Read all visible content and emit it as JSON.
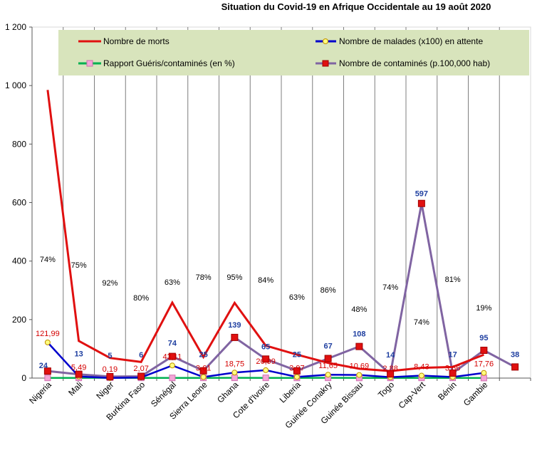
{
  "chart_data": {
    "type": "line",
    "title": "Situation du Covid-19 en Afrique Occidentale au 19 août 2020",
    "ylim": [
      0,
      1200
    ],
    "yticks": [
      "0",
      "200",
      "400",
      "600",
      "800",
      "1 000",
      "1 200"
    ],
    "categories": [
      "Nigeria",
      "Mali",
      "Niger",
      "Burkina Faso",
      "Sénégal",
      "Sierra Leone",
      "Ghana",
      "Cote d'Ivoire",
      "Liberia",
      "Guinée Conakry",
      "Guinée Bissau",
      "Togo",
      "Cap-Vert",
      "Bénin",
      "Gambie",
      ""
    ],
    "legend_position": "top",
    "grid": "vertical",
    "series": [
      {
        "name": "Nombre de morts",
        "color": "#e01010",
        "values": [
          985,
          127,
          69,
          55,
          258,
          72,
          257,
          111,
          80,
          52,
          32,
          24,
          35,
          38,
          80,
          null
        ]
      },
      {
        "name": "Nombre de malades (x100) en attente",
        "color": "#0000cc",
        "values": [
          121.99,
          5.49,
          0.19,
          2.07,
          43.11,
          3.61,
          18.75,
          26.99,
          3.97,
          11.65,
          10.69,
          2.88,
          8.43,
          3.66,
          17.76,
          null
        ],
        "labels": [
          "121,99",
          "5,49",
          "0,19",
          "2,07",
          "43,11",
          "3,61",
          "18,75",
          "26,99",
          "3,97",
          "11,65",
          "10,69",
          "2,88",
          "8,43",
          "3,66",
          "17,76",
          ""
        ]
      },
      {
        "name": "Rapport Guéris/contaminés (en %)",
        "color": "#00b050",
        "values": [
          74,
          75,
          92,
          80,
          63,
          78,
          95,
          84,
          63,
          86,
          48,
          74,
          74,
          81,
          19,
          null
        ],
        "labels": [
          "74%",
          "75%",
          "92%",
          "80%",
          "63%",
          "78%",
          "95%",
          "84%",
          "63%",
          "86%",
          "48%",
          "74%",
          "74%",
          "81%",
          "19%",
          ""
        ]
      },
      {
        "name": "Nombre de contaminés (p.100,000 hab)",
        "color": "#8064a2",
        "values": [
          24,
          13,
          5,
          6,
          74,
          25,
          139,
          65,
          25,
          67,
          108,
          14,
          597,
          17,
          95,
          38
        ],
        "labels": [
          "24",
          "13",
          "5",
          "6",
          "74",
          "25",
          "139",
          "65",
          "25",
          "67",
          "108",
          "14",
          "597",
          "17",
          "95",
          "38"
        ]
      }
    ]
  }
}
